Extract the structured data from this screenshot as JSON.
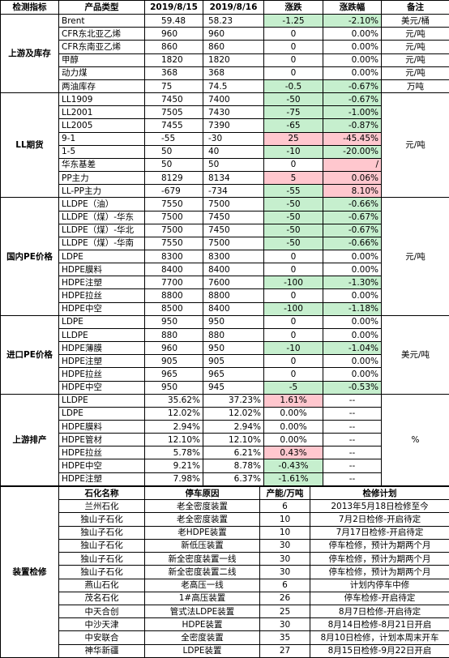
{
  "header": [
    "检测指标",
    "产品类型",
    "2019/8/15",
    "2019/8/16",
    "涨跌",
    "涨跌幅",
    "备注"
  ],
  "sections": [
    {
      "label": "上游及库存",
      "rows": [
        {
          "product": "Brent",
          "d1": "59.48",
          "d2": "58.23",
          "change": "-1.25",
          "pct": "-2.10%",
          "note": "美元/桶",
          "change_color": "#c6efce",
          "pct_color": "#c6efce"
        },
        {
          "product": "CFR东北亚乙烯",
          "d1": "960",
          "d2": "960",
          "change": "0",
          "pct": "0.00%",
          "note": "元/吨"
        },
        {
          "product": "CFR东南亚乙烯",
          "d1": "860",
          "d2": "860",
          "change": "0",
          "pct": "0.00%",
          "note": "元/吨"
        },
        {
          "product": "甲醇",
          "d1": "1820",
          "d2": "1820",
          "change": "0",
          "pct": "0.00%",
          "note": "元/吨"
        },
        {
          "product": "动力煤",
          "d1": "368",
          "d2": "368",
          "change": "0",
          "pct": "0.00%",
          "note": "元/吨"
        },
        {
          "product": "两油库存",
          "d1": "75",
          "d2": "74.5",
          "change": "-0.5",
          "pct": "-0.67%",
          "note": "万吨",
          "change_color": "#c6efce",
          "pct_color": "#c6efce"
        }
      ]
    },
    {
      "label": "LL期货",
      "note": "元/吨",
      "rows": [
        {
          "product": "LL1909",
          "d1": "7450",
          "d2": "7400",
          "change": "-50",
          "pct": "-0.67%",
          "change_color": "#c6efce",
          "pct_color": "#c6efce"
        },
        {
          "product": "LL2001",
          "d1": "7505",
          "d2": "7430",
          "change": "-75",
          "pct": "-1.00%",
          "change_color": "#c6efce",
          "pct_color": "#c6efce"
        },
        {
          "product": "LL2005",
          "d1": "7455",
          "d2": "7390",
          "change": "-65",
          "pct": "-0.87%",
          "change_color": "#c6efce",
          "pct_color": "#c6efce"
        },
        {
          "product": "9-1",
          "d1": "-55",
          "d2": "-30",
          "change": "25",
          "pct": "-45.45%",
          "change_color": "#ffc7ce",
          "pct_color": "#ffc7ce"
        },
        {
          "product": "1-5",
          "d1": "50",
          "d2": "40",
          "change": "-10",
          "pct": "-20.00%",
          "change_color": "#c6efce",
          "pct_color": "#c6efce"
        },
        {
          "product": "华东基差",
          "d1": "50",
          "d2": "50",
          "change": "0",
          "pct": "/",
          "pct_color": "#ffc7ce"
        },
        {
          "product": "PP主力",
          "d1": "8129",
          "d2": "8134",
          "change": "5",
          "pct": "0.06%",
          "change_color": "#ffc7ce",
          "pct_color": "#ffc7ce"
        },
        {
          "product": "LL-PP主力",
          "d1": "-679",
          "d2": "-734",
          "change": "-55",
          "pct": "8.10%",
          "change_color": "#c6efce",
          "pct_color": "#ffc7ce"
        }
      ]
    },
    {
      "label": "国内PE价格",
      "note": "元/吨",
      "rows": [
        {
          "product": "LLDPE（油）",
          "d1": "7550",
          "d2": "7500",
          "change": "-50",
          "pct": "-0.66%",
          "change_color": "#c6efce",
          "pct_color": "#c6efce"
        },
        {
          "product": "LLDPE（煤）-华东",
          "d1": "7500",
          "d2": "7450",
          "change": "-50",
          "pct": "-0.67%",
          "change_color": "#c6efce",
          "pct_color": "#c6efce"
        },
        {
          "product": "LLDPE（煤）-华北",
          "d1": "7500",
          "d2": "7450",
          "change": "-50",
          "pct": "-0.67%",
          "change_color": "#c6efce",
          "pct_color": "#c6efce"
        },
        {
          "product": "LLDPE（煤）-华南",
          "d1": "7550",
          "d2": "7500",
          "change": "-50",
          "pct": "-0.66%",
          "change_color": "#c6efce",
          "pct_color": "#c6efce"
        },
        {
          "product": "LDPE",
          "d1": "8300",
          "d2": "8300",
          "change": "0",
          "pct": "0.00%"
        },
        {
          "product": "HDPE膜料",
          "d1": "8400",
          "d2": "8400",
          "change": "0",
          "pct": "0.00%"
        },
        {
          "product": "HDPE注塑",
          "d1": "7700",
          "d2": "7600",
          "change": "-100",
          "pct": "-1.30%",
          "change_color": "#c6efce",
          "pct_color": "#c6efce"
        },
        {
          "product": "HDPE拉丝",
          "d1": "8800",
          "d2": "8800",
          "change": "0",
          "pct": "0.00%"
        },
        {
          "product": "HDPE中空",
          "d1": "8500",
          "d2": "8400",
          "change": "-100",
          "pct": "-1.18%",
          "change_color": "#c6efce",
          "pct_color": "#c6efce"
        }
      ]
    },
    {
      "label": "进口PE价格",
      "note": "美元/吨",
      "rows": [
        {
          "product": "LDPE",
          "d1": "950",
          "d2": "950",
          "change": "0",
          "pct": "0.00%"
        },
        {
          "product": "LLDPE",
          "d1": "880",
          "d2": "880",
          "change": "0",
          "pct": "0.00%"
        },
        {
          "product": "HDPE薄膜",
          "d1": "960",
          "d2": "950",
          "change": "-10",
          "pct": "-1.04%",
          "change_color": "#c6efce",
          "pct_color": "#c6efce"
        },
        {
          "product": "HDPE注塑",
          "d1": "905",
          "d2": "905",
          "change": "0",
          "pct": "0.00%"
        },
        {
          "product": "HDPE拉丝",
          "d1": "965",
          "d2": "965",
          "change": "0",
          "pct": "0.00%"
        },
        {
          "product": "HDPE中空",
          "d1": "950",
          "d2": "945",
          "change": "-5",
          "pct": "-0.53%",
          "change_color": "#c6efce",
          "pct_color": "#c6efce"
        }
      ]
    },
    {
      "label": "上游排产",
      "note": "%",
      "rows": [
        {
          "product": "LLDPE",
          "d1": "35.62%",
          "d2": "37.23%",
          "change": "1.61%",
          "pct": "--",
          "change_color": "#ffc7ce"
        },
        {
          "product": "LDPE",
          "d1": "12.02%",
          "d2": "12.02%",
          "change": "0.00%",
          "pct": "--"
        },
        {
          "product": "HDPE膜料",
          "d1": "2.94%",
          "d2": "2.94%",
          "change": "0.00%",
          "pct": "--"
        },
        {
          "product": "HDPE管材",
          "d1": "12.10%",
          "d2": "12.10%",
          "change": "0.00%",
          "pct": "--"
        },
        {
          "product": "HDPE拉丝",
          "d1": "5.78%",
          "d2": "6.21%",
          "change": "0.43%",
          "pct": "--",
          "change_color": "#ffc7ce"
        },
        {
          "product": "HDPE中空",
          "d1": "9.21%",
          "d2": "8.78%",
          "change": "-0.43%",
          "pct": "--",
          "change_color": "#c6efce"
        },
        {
          "product": "HDPE注塑",
          "d1": "7.98%",
          "d2": "6.37%",
          "change": "-1.61%",
          "pct": "--",
          "change_color": "#c6efce"
        }
      ]
    }
  ],
  "maintenance": {
    "label": "装置检修",
    "header": [
      "石化名称",
      "停车原因",
      "产能/万吨",
      "检修计划"
    ],
    "rows": [
      [
        "兰州石化",
        "老全密度装置",
        "6",
        "2013年5月18日检修至今"
      ],
      [
        "独山子石化",
        "老全密度装置",
        "10",
        "7月2日检修-开启待定"
      ],
      [
        "独山子石化",
        "老HDPE装置",
        "10",
        "7月17日检修-开启待定"
      ],
      [
        "独山子石化",
        "新低压装置",
        "30",
        "停车检修，预计为期两个月"
      ],
      [
        "独山子石化",
        "新全密度装置一线",
        "30",
        "停车检修，预计为期两个月"
      ],
      [
        "独山子石化",
        "新全密度装置二线",
        "30",
        "停车检修，预计为期两个月"
      ],
      [
        "燕山石化",
        "老高压一线",
        "6",
        "计划内停车中修"
      ],
      [
        "茂名石化",
        "1#高压装置",
        "26",
        "停车检修-开启待定"
      ],
      [
        "中天合创",
        "管式法LDPE装置",
        "25",
        "8月7日检修-开启待定"
      ],
      [
        "中沙天津",
        "HDPE装置",
        "30",
        "8月14日检修-8月21日开启"
      ],
      [
        "中安联合",
        "全密度装置",
        "35",
        "8月10日检修，计划本周末开车"
      ],
      [
        "神华新疆",
        "LDPE装置",
        "27",
        "8月15日检修-9月22日开启"
      ]
    ]
  }
}
